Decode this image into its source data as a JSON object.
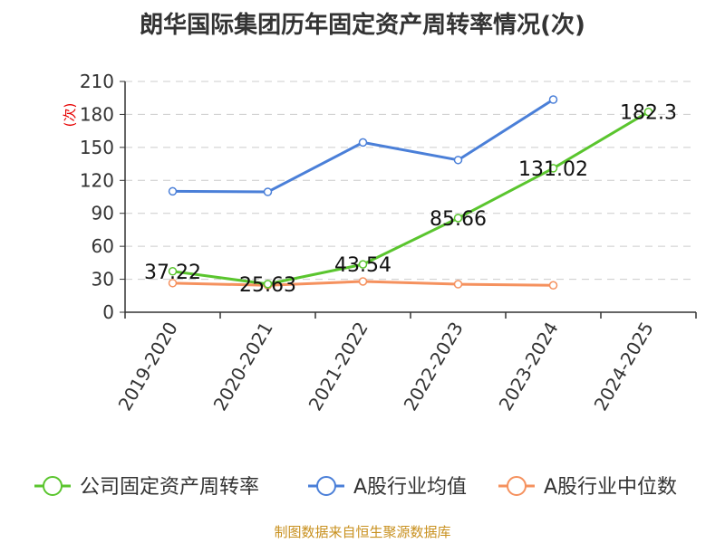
{
  "chart_data": {
    "type": "line",
    "title": "朗华国际集团历年固定资产周转率情况(次)",
    "categories": [
      "2019-2020",
      "2020-2021",
      "2021-2022",
      "2022-2023",
      "2023-2024",
      "2024-2025"
    ],
    "ylim": [
      0,
      210
    ],
    "yticks": [
      "0",
      "30",
      "60",
      "90",
      "120",
      "150",
      "180",
      "210"
    ],
    "yunit": "(次)",
    "grid": true,
    "legend_position": "bottom",
    "series": [
      {
        "name": "公司固定资产周转率",
        "color": "#5ac52e",
        "values": [
          37.22,
          25.63,
          43.54,
          85.66,
          131.02,
          182.3
        ],
        "labels": [
          "37.22",
          "25.63",
          "43.54",
          "85.66",
          "131.02",
          "182.3"
        ]
      },
      {
        "name": "A股行业均值",
        "color": "#4a7fd8",
        "values": [
          110,
          109.5,
          154.5,
          138.5,
          193.5,
          null
        ]
      },
      {
        "name": "A股行业中位数",
        "color": "#f5915e",
        "values": [
          26.5,
          24.5,
          28,
          25.5,
          24.5,
          null
        ]
      }
    ],
    "source": "制图数据来自恒生聚源数据库"
  }
}
